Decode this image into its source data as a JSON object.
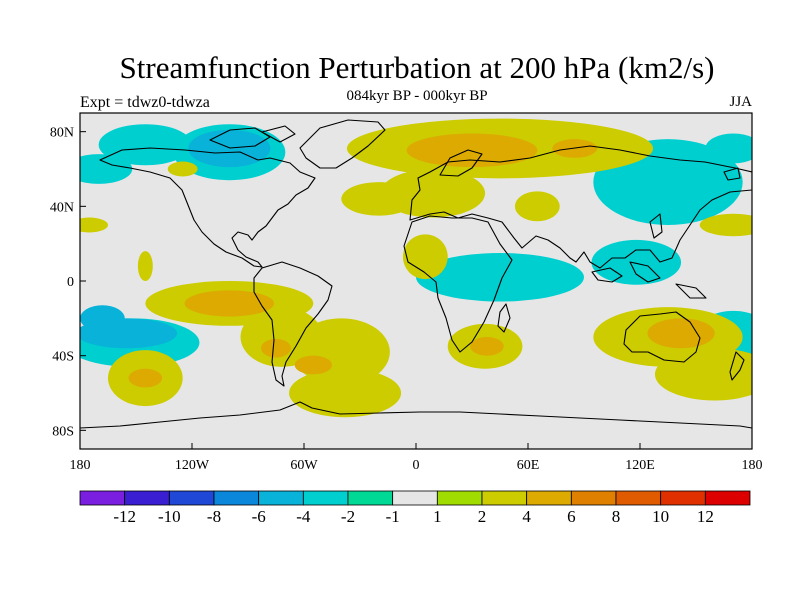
{
  "header": {
    "title": "Streamfunction Perturbation at 200 hPa (km2/s)",
    "subtitle": "084kyr BP - 000kyr BP",
    "experiment": "Expt = tdwz0-tdwza",
    "season": "JJA"
  },
  "chart_data": {
    "type": "heatmap",
    "projection": "cylindrical-equidistant",
    "xlim": [
      -180,
      180
    ],
    "ylim": [
      -90,
      90
    ],
    "x_ticks": [
      {
        "value": -180,
        "label": "180"
      },
      {
        "value": -120,
        "label": "120W"
      },
      {
        "value": -60,
        "label": "60W"
      },
      {
        "value": 0,
        "label": "0"
      },
      {
        "value": 60,
        "label": "60E"
      },
      {
        "value": 120,
        "label": "120E"
      },
      {
        "value": 180,
        "label": "180"
      }
    ],
    "y_ticks": [
      {
        "value": 80,
        "label": "80N"
      },
      {
        "value": 40,
        "label": "40N"
      },
      {
        "value": 0,
        "label": "0"
      },
      {
        "value": -40,
        "label": "40S"
      },
      {
        "value": -80,
        "label": "80S"
      }
    ],
    "colorbar": {
      "colors": [
        "#7a1ee0",
        "#3a1ed2",
        "#1f48d6",
        "#0a86da",
        "#08b2d8",
        "#00cfd0",
        "#00d896",
        "#e6e6e6",
        "#a0dc00",
        "#cccc00",
        "#dcaa00",
        "#e08000",
        "#e05a00",
        "#e03000",
        "#dc0000"
      ],
      "labels": [
        "-12",
        "-10",
        "-8",
        "-6",
        "-4",
        "-2",
        "-1",
        "1",
        "2",
        "4",
        "6",
        "8",
        "10",
        "12"
      ]
    },
    "fields": [
      {
        "level": "-2",
        "lon": -145,
        "lat": 73,
        "rlon": 25,
        "rlat": 11
      },
      {
        "level": "-2",
        "lon": -100,
        "lat": 69,
        "rlon": 30,
        "rlat": 15
      },
      {
        "level": "-4",
        "lon": -100,
        "lat": 71,
        "rlon": 22,
        "rlat": 10
      },
      {
        "level": "-2",
        "lon": -170,
        "lat": 60,
        "rlon": 18,
        "rlat": 8
      },
      {
        "level": "-2",
        "lon": 135,
        "lat": 53,
        "rlon": 40,
        "rlat": 23
      },
      {
        "level": "-2",
        "lon": 170,
        "lat": 71,
        "rlon": 15,
        "rlat": 8
      },
      {
        "level": "-2",
        "lon": 45,
        "lat": 2,
        "rlon": 45,
        "rlat": 13
      },
      {
        "level": "-2",
        "lon": 118,
        "lat": 10,
        "rlon": 24,
        "rlat": 12
      },
      {
        "level": "-2",
        "lon": -152,
        "lat": -33,
        "rlon": 36,
        "rlat": 13
      },
      {
        "level": "-4",
        "lon": -155,
        "lat": -28,
        "rlon": 27,
        "rlat": 8
      },
      {
        "level": "-4",
        "lon": -168,
        "lat": -20,
        "rlon": 12,
        "rlat": 7
      },
      {
        "level": "-2",
        "lon": 170,
        "lat": -28,
        "rlon": 20,
        "rlat": 12
      },
      {
        "level": "-2",
        "lon": 168,
        "lat": -45,
        "rlon": 25,
        "rlat": 11
      },
      {
        "level": "-2",
        "lon": 140,
        "lat": -23,
        "rlon": 5,
        "rlat": 4
      },
      {
        "level": "2",
        "lon": 45,
        "lat": 71,
        "rlon": 82,
        "rlat": 16
      },
      {
        "level": "4",
        "lon": 30,
        "lat": 70,
        "rlon": 35,
        "rlat": 9
      },
      {
        "level": "4",
        "lon": 85,
        "lat": 71,
        "rlon": 12,
        "rlat": 5
      },
      {
        "level": "2",
        "lon": 9,
        "lat": 47,
        "rlon": 28,
        "rlat": 13
      },
      {
        "level": "2",
        "lon": -20,
        "lat": 44,
        "rlon": 20,
        "rlat": 9
      },
      {
        "level": "2",
        "lon": 65,
        "lat": 40,
        "rlon": 12,
        "rlat": 8
      },
      {
        "level": "2",
        "lon": 170,
        "lat": 30,
        "rlon": 18,
        "rlat": 6
      },
      {
        "level": "2",
        "lon": -175,
        "lat": 30,
        "rlon": 10,
        "rlat": 4
      },
      {
        "level": "2",
        "lon": 5,
        "lat": 13,
        "rlon": 12,
        "rlat": 12
      },
      {
        "level": "2",
        "lon": -145,
        "lat": 8,
        "rlon": 4,
        "rlat": 8
      },
      {
        "level": "2",
        "lon": -100,
        "lat": -12,
        "rlon": 45,
        "rlat": 12
      },
      {
        "level": "2",
        "lon": -72,
        "lat": -30,
        "rlon": 22,
        "rlat": 16
      },
      {
        "level": "4",
        "lon": -100,
        "lat": -12,
        "rlon": 24,
        "rlat": 7
      },
      {
        "level": "4",
        "lon": -75,
        "lat": -36,
        "rlon": 8,
        "rlat": 5
      },
      {
        "level": "2",
        "lon": -40,
        "lat": -38,
        "rlon": 26,
        "rlat": 18
      },
      {
        "level": "2",
        "lon": -38,
        "lat": -60,
        "rlon": 30,
        "rlat": 13
      },
      {
        "level": "4",
        "lon": -55,
        "lat": -45,
        "rlon": 10,
        "rlat": 5
      },
      {
        "level": "2",
        "lon": 37,
        "lat": -35,
        "rlon": 20,
        "rlat": 12
      },
      {
        "level": "4",
        "lon": 38,
        "lat": -35,
        "rlon": 9,
        "rlat": 5
      },
      {
        "level": "2",
        "lon": 135,
        "lat": -30,
        "rlon": 40,
        "rlat": 16
      },
      {
        "level": "4",
        "lon": 142,
        "lat": -28,
        "rlon": 18,
        "rlat": 8
      },
      {
        "level": "2",
        "lon": 160,
        "lat": -50,
        "rlon": 32,
        "rlat": 14
      },
      {
        "level": "2",
        "lon": -145,
        "lat": -52,
        "rlon": 20,
        "rlat": 15
      },
      {
        "level": "4",
        "lon": -145,
        "lat": -52,
        "rlon": 9,
        "rlat": 5
      },
      {
        "level": "2",
        "lon": -125,
        "lat": 60,
        "rlon": 8,
        "rlat": 4
      }
    ]
  }
}
